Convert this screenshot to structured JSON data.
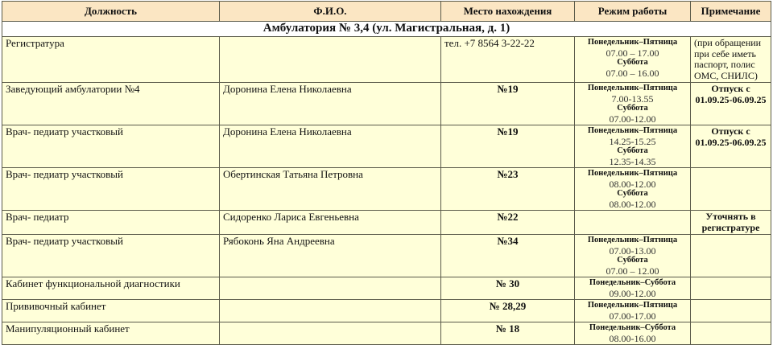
{
  "headers": [
    "Должность",
    "Ф.И.О.",
    "Место нахождения",
    "Режим работы",
    "Примечание"
  ],
  "section_title": "Амбулатория № 3,4 (ул. Магистральная, д. 1)",
  "rows": [
    {
      "position": "Регистратура",
      "name": "",
      "location": "тел. +7 8564 3-22-22",
      "sched": [
        {
          "days": "Понедельник–Пятница",
          "hours": "07.00 – 17.00"
        },
        {
          "days": "Суббота",
          "hours": "07.00 – 16.00"
        }
      ],
      "note": "(при обращении при себе иметь паспорт, полис ОМС, СНИЛС)"
    },
    {
      "position": "Заведующий амбулатории №4",
      "name": "Доронина Елена Николаевна",
      "location": "№19",
      "sched": [
        {
          "days": "Понедельник–Пятница",
          "hours": "7.00-13.55"
        },
        {
          "days": "Суббота",
          "hours": "07.00-12.00"
        }
      ],
      "note": "Отпуск с 01.09.25-06.09.25"
    },
    {
      "position": "Врач- педиатр участковый",
      "name": "Доронина Елена Николаевна",
      "location": "№19",
      "sched": [
        {
          "days": "Понедельник–Пятница",
          "hours": "14.25-15.25"
        },
        {
          "days": "Суббота",
          "hours": "12.35-14.35"
        }
      ],
      "note": "Отпуск с 01.09.25-06.09.25"
    },
    {
      "position": "Врач- педиатр участковый",
      "name": "Обертинская Татьяна Петровна",
      "location": "№23",
      "sched": [
        {
          "days": "Понедельник–Пятница",
          "hours": "08.00-12.00"
        },
        {
          "days": "Суббота",
          "hours": "08.00-12.00"
        }
      ],
      "note": ""
    },
    {
      "position": "Врач- педиатр",
      "name": "Сидоренко Лариса Евгеньевна",
      "location": "№22",
      "sched": [],
      "note": "Уточнять в регистратуре"
    },
    {
      "position": "Врач- педиатр участковый",
      "name": "Рябоконь Яна Андреевна",
      "location": "№34",
      "sched": [
        {
          "days": "Понедельник–Пятница",
          "hours": "07.00-13.00"
        },
        {
          "days": "Суббота",
          "hours": "07.00 – 12.00"
        }
      ],
      "note": ""
    },
    {
      "position": "Кабинет функциональной диагностики",
      "name": "",
      "location": "№ 30",
      "sched": [
        {
          "days": "Понедельник–Суббота",
          "hours": "09.00-12.00"
        }
      ],
      "note": ""
    },
    {
      "position": "Прививочный кабинет",
      "name": "",
      "location": "№ 28,29",
      "sched": [
        {
          "days": "Понедельник–Пятница",
          "hours": "07.00-17.00"
        }
      ],
      "note": ""
    },
    {
      "position": "Манипуляционный кабинет",
      "name": "",
      "location": "№ 18",
      "sched": [
        {
          "days": "Понедельник–Суббота",
          "hours": "08.00-16.00"
        }
      ],
      "note": ""
    }
  ]
}
